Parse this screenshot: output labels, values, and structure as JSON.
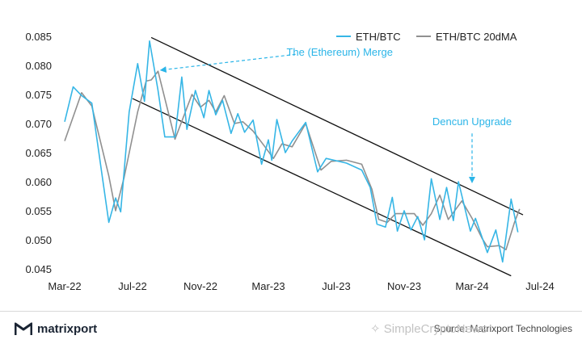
{
  "chart_data": {
    "type": "line",
    "title": "",
    "xlabel": "",
    "ylabel": "",
    "x_ticks": [
      {
        "label": "Mar-22",
        "t": 0
      },
      {
        "label": "Jul-22",
        "t": 4
      },
      {
        "label": "Nov-22",
        "t": 8
      },
      {
        "label": "Mar-23",
        "t": 12
      },
      {
        "label": "Jul-23",
        "t": 16
      },
      {
        "label": "Nov-23",
        "t": 20
      },
      {
        "label": "Mar-24",
        "t": 24
      },
      {
        "label": "Jul-24",
        "t": 28
      }
    ],
    "y_ticks": [
      0.045,
      0.05,
      0.055,
      0.06,
      0.065,
      0.07,
      0.075,
      0.08,
      0.085
    ],
    "y_tick_labels": [
      "0.045",
      "0.050",
      "0.055",
      "0.060",
      "0.065",
      "0.070",
      "0.075",
      "0.080",
      "0.085"
    ],
    "xlim": [
      0,
      28
    ],
    "ylim": [
      0.045,
      0.085
    ],
    "grid": false,
    "legend_position": "top-right",
    "series": [
      {
        "name": "ETH/BTC",
        "color": "#36b6e6",
        "points": [
          [
            0,
            0.0703
          ],
          [
            0.5,
            0.0763
          ],
          [
            1.0,
            0.0748
          ],
          [
            1.6,
            0.0735
          ],
          [
            2.6,
            0.053
          ],
          [
            3.0,
            0.0572
          ],
          [
            3.3,
            0.0548
          ],
          [
            3.8,
            0.072
          ],
          [
            4.3,
            0.0803
          ],
          [
            4.7,
            0.0738
          ],
          [
            5.0,
            0.0842
          ],
          [
            5.5,
            0.0757
          ],
          [
            5.9,
            0.0677
          ],
          [
            6.5,
            0.0677
          ],
          [
            6.9,
            0.078
          ],
          [
            7.2,
            0.069
          ],
          [
            7.7,
            0.0757
          ],
          [
            8.2,
            0.071
          ],
          [
            8.5,
            0.0757
          ],
          [
            8.9,
            0.0715
          ],
          [
            9.3,
            0.074
          ],
          [
            9.8,
            0.0683
          ],
          [
            10.2,
            0.0717
          ],
          [
            10.6,
            0.0685
          ],
          [
            11.1,
            0.0706
          ],
          [
            11.6,
            0.063
          ],
          [
            12.0,
            0.0672
          ],
          [
            12.2,
            0.0637
          ],
          [
            12.5,
            0.0707
          ],
          [
            13.0,
            0.065
          ],
          [
            13.4,
            0.067
          ],
          [
            14.2,
            0.0702
          ],
          [
            14.9,
            0.0617
          ],
          [
            15.4,
            0.064
          ],
          [
            16.6,
            0.0632
          ],
          [
            17.5,
            0.062
          ],
          [
            18.0,
            0.059
          ],
          [
            18.4,
            0.0527
          ],
          [
            18.9,
            0.0522
          ],
          [
            19.3,
            0.0573
          ],
          [
            19.6,
            0.0515
          ],
          [
            20.0,
            0.055
          ],
          [
            20.4,
            0.0517
          ],
          [
            20.8,
            0.054
          ],
          [
            21.2,
            0.05
          ],
          [
            21.6,
            0.0605
          ],
          [
            22.1,
            0.0535
          ],
          [
            22.5,
            0.059
          ],
          [
            22.9,
            0.0533
          ],
          [
            23.2,
            0.06
          ],
          [
            23.9,
            0.0515
          ],
          [
            24.2,
            0.0537
          ],
          [
            24.9,
            0.0478
          ],
          [
            25.4,
            0.0517
          ],
          [
            25.8,
            0.0462
          ],
          [
            26.3,
            0.057
          ],
          [
            26.7,
            0.0513
          ]
        ]
      },
      {
        "name": "ETH/BTC 20dMA",
        "color": "#909090",
        "points": [
          [
            0,
            0.067
          ],
          [
            1.0,
            0.0753
          ],
          [
            1.6,
            0.073
          ],
          [
            2.6,
            0.061
          ],
          [
            3.0,
            0.055
          ],
          [
            3.5,
            0.0607
          ],
          [
            4.3,
            0.072
          ],
          [
            4.8,
            0.0773
          ],
          [
            5.1,
            0.0775
          ],
          [
            5.5,
            0.079
          ],
          [
            6.5,
            0.0673
          ],
          [
            7.5,
            0.075
          ],
          [
            8.0,
            0.0728
          ],
          [
            8.5,
            0.074
          ],
          [
            8.9,
            0.072
          ],
          [
            9.4,
            0.0748
          ],
          [
            10.0,
            0.07
          ],
          [
            10.5,
            0.0703
          ],
          [
            11.1,
            0.0687
          ],
          [
            11.8,
            0.066
          ],
          [
            12.3,
            0.064
          ],
          [
            12.8,
            0.0665
          ],
          [
            13.4,
            0.066
          ],
          [
            14.2,
            0.07
          ],
          [
            15.1,
            0.062
          ],
          [
            15.7,
            0.0635
          ],
          [
            16.6,
            0.0637
          ],
          [
            17.5,
            0.063
          ],
          [
            18.1,
            0.0587
          ],
          [
            18.5,
            0.0535
          ],
          [
            19.0,
            0.053
          ],
          [
            19.5,
            0.0545
          ],
          [
            20.1,
            0.0545
          ],
          [
            20.6,
            0.0545
          ],
          [
            21.1,
            0.0525
          ],
          [
            21.6,
            0.0545
          ],
          [
            22.1,
            0.0577
          ],
          [
            22.6,
            0.0535
          ],
          [
            23.4,
            0.0567
          ],
          [
            24.0,
            0.0537
          ],
          [
            24.6,
            0.0502
          ],
          [
            24.9,
            0.0488
          ],
          [
            25.6,
            0.049
          ],
          [
            26.0,
            0.0483
          ],
          [
            26.5,
            0.053
          ],
          [
            26.8,
            0.0553
          ]
        ]
      }
    ],
    "trend_channel": [
      {
        "name": "upper-channel-line",
        "from": [
          5.1,
          0.0848
        ],
        "to": [
          27.0,
          0.0543
        ]
      },
      {
        "name": "lower-channel-line",
        "from": [
          4.0,
          0.0743
        ],
        "to": [
          26.3,
          0.0438
        ]
      }
    ],
    "annotations": [
      {
        "key": "merge",
        "text": "The (Ethereum) Merge",
        "text_at": [
          16.2,
          0.0817
        ],
        "arrow_from": [
          13.6,
          0.0819
        ],
        "arrow_to": [
          5.7,
          0.0792
        ]
      },
      {
        "key": "dencun",
        "text": "Dencun Upgrade",
        "text_at": [
          24.0,
          0.0697
        ],
        "arrow_from": [
          24.0,
          0.0683
        ],
        "arrow_to": [
          24.0,
          0.06
        ]
      }
    ]
  },
  "footer": {
    "brand": "matrixport",
    "source": "Source: Matrixport Technologies",
    "watermark": "SimpleCryptoNews"
  }
}
